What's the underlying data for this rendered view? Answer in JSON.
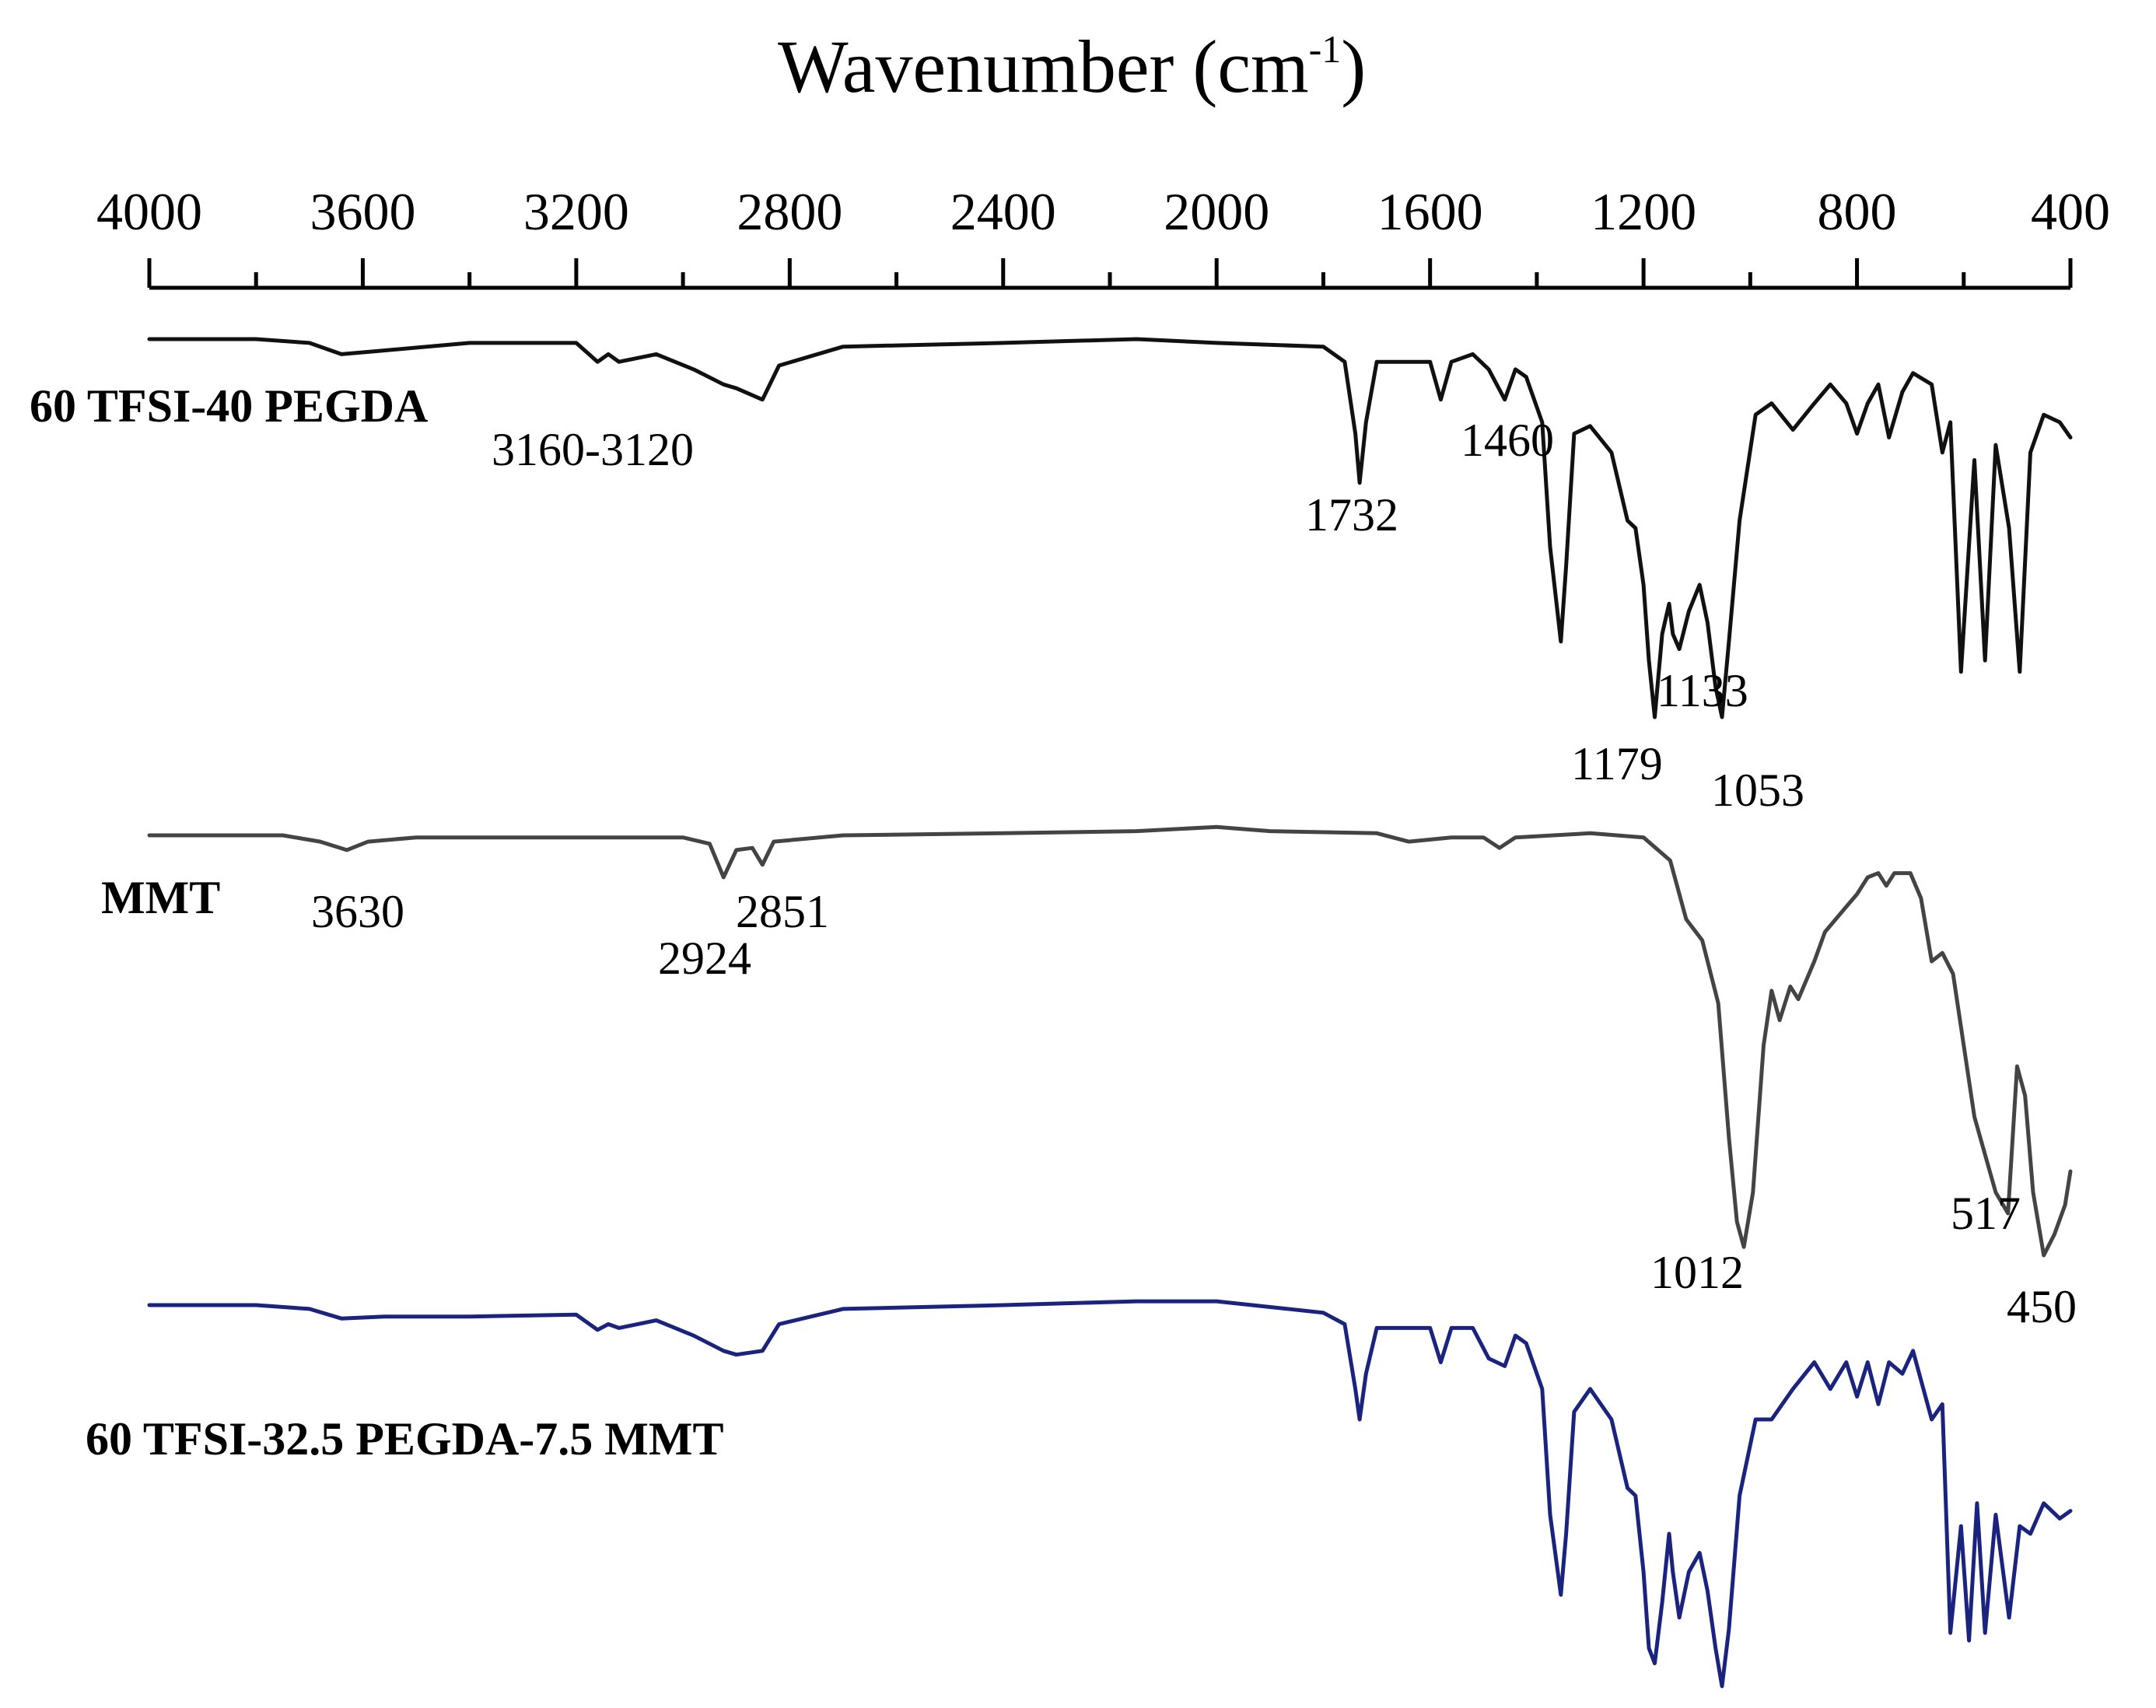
{
  "chart_data": {
    "type": "line",
    "xlabel": "Wavenumber (cm",
    "xlabel_sup": "-1",
    "xlabel_tail": ")",
    "xlim": [
      4000,
      400
    ],
    "x_reversed": true,
    "axis_position": "top",
    "xticks": [
      "4000",
      "3600",
      "3200",
      "2800",
      "2400",
      "2000",
      "1600",
      "1200",
      "800",
      "400"
    ],
    "xtick_values": [
      4000,
      3600,
      3200,
      2800,
      2400,
      2000,
      1600,
      1200,
      800,
      400
    ],
    "grid": false,
    "series": [
      {
        "name": "60 TFSI-40 PEGDA",
        "color": "#111111",
        "baseline": 0.0,
        "points": [
          [
            4000,
            0.0
          ],
          [
            3800,
            0.0
          ],
          [
            3700,
            0.01
          ],
          [
            3640,
            0.04
          ],
          [
            3560,
            0.03
          ],
          [
            3400,
            0.01
          ],
          [
            3200,
            0.01
          ],
          [
            3160,
            0.06
          ],
          [
            3140,
            0.04
          ],
          [
            3120,
            0.06
          ],
          [
            3050,
            0.04
          ],
          [
            2980,
            0.08
          ],
          [
            2924,
            0.12
          ],
          [
            2900,
            0.13
          ],
          [
            2851,
            0.16
          ],
          [
            2820,
            0.07
          ],
          [
            2700,
            0.02
          ],
          [
            2400,
            0.01
          ],
          [
            2150,
            0.0
          ],
          [
            2000,
            0.01
          ],
          [
            1800,
            0.02
          ],
          [
            1760,
            0.06
          ],
          [
            1740,
            0.25
          ],
          [
            1732,
            0.38
          ],
          [
            1720,
            0.22
          ],
          [
            1700,
            0.06
          ],
          [
            1640,
            0.06
          ],
          [
            1600,
            0.06
          ],
          [
            1580,
            0.16
          ],
          [
            1560,
            0.06
          ],
          [
            1520,
            0.04
          ],
          [
            1490,
            0.08
          ],
          [
            1460,
            0.16
          ],
          [
            1440,
            0.08
          ],
          [
            1420,
            0.1
          ],
          [
            1390,
            0.22
          ],
          [
            1375,
            0.55
          ],
          [
            1355,
            0.8
          ],
          [
            1345,
            0.6
          ],
          [
            1330,
            0.25
          ],
          [
            1300,
            0.23
          ],
          [
            1260,
            0.3
          ],
          [
            1230,
            0.48
          ],
          [
            1215,
            0.5
          ],
          [
            1200,
            0.65
          ],
          [
            1190,
            0.85
          ],
          [
            1179,
            1.0
          ],
          [
            1165,
            0.78
          ],
          [
            1152,
            0.7
          ],
          [
            1145,
            0.78
          ],
          [
            1133,
            0.82
          ],
          [
            1115,
            0.72
          ],
          [
            1095,
            0.65
          ],
          [
            1080,
            0.75
          ],
          [
            1065,
            0.92
          ],
          [
            1053,
            1.0
          ],
          [
            1040,
            0.8
          ],
          [
            1020,
            0.48
          ],
          [
            990,
            0.2
          ],
          [
            960,
            0.17
          ],
          [
            920,
            0.24
          ],
          [
            880,
            0.17
          ],
          [
            850,
            0.12
          ],
          [
            820,
            0.17
          ],
          [
            800,
            0.25
          ],
          [
            780,
            0.17
          ],
          [
            760,
            0.12
          ],
          [
            740,
            0.26
          ],
          [
            715,
            0.14
          ],
          [
            695,
            0.09
          ],
          [
            660,
            0.12
          ],
          [
            640,
            0.3
          ],
          [
            625,
            0.22
          ],
          [
            605,
            0.88
          ],
          [
            580,
            0.32
          ],
          [
            560,
            0.85
          ],
          [
            540,
            0.28
          ],
          [
            515,
            0.5
          ],
          [
            495,
            0.88
          ],
          [
            475,
            0.3
          ],
          [
            450,
            0.2
          ],
          [
            420,
            0.22
          ],
          [
            400,
            0.26
          ]
        ]
      },
      {
        "name": "MMT",
        "color": "#444444",
        "baseline": 0.0,
        "points": [
          [
            4000,
            0.0
          ],
          [
            3750,
            0.0
          ],
          [
            3680,
            0.015
          ],
          [
            3630,
            0.035
          ],
          [
            3590,
            0.015
          ],
          [
            3500,
            0.005
          ],
          [
            3200,
            0.005
          ],
          [
            3000,
            0.005
          ],
          [
            2950,
            0.02
          ],
          [
            2924,
            0.1
          ],
          [
            2900,
            0.035
          ],
          [
            2870,
            0.03
          ],
          [
            2851,
            0.07
          ],
          [
            2830,
            0.015
          ],
          [
            2700,
            0.0
          ],
          [
            2400,
            -0.005
          ],
          [
            2150,
            -0.01
          ],
          [
            2000,
            -0.02
          ],
          [
            1900,
            -0.01
          ],
          [
            1700,
            -0.005
          ],
          [
            1640,
            0.015
          ],
          [
            1560,
            0.005
          ],
          [
            1500,
            0.005
          ],
          [
            1470,
            0.03
          ],
          [
            1440,
            0.005
          ],
          [
            1300,
            -0.005
          ],
          [
            1200,
            0.005
          ],
          [
            1150,
            0.06
          ],
          [
            1120,
            0.2
          ],
          [
            1090,
            0.25
          ],
          [
            1060,
            0.4
          ],
          [
            1040,
            0.72
          ],
          [
            1025,
            0.92
          ],
          [
            1012,
            0.98
          ],
          [
            995,
            0.85
          ],
          [
            975,
            0.5
          ],
          [
            960,
            0.37
          ],
          [
            945,
            0.44
          ],
          [
            925,
            0.36
          ],
          [
            910,
            0.39
          ],
          [
            880,
            0.3
          ],
          [
            860,
            0.23
          ],
          [
            840,
            0.2
          ],
          [
            820,
            0.17
          ],
          [
            800,
            0.14
          ],
          [
            780,
            0.1
          ],
          [
            760,
            0.09
          ],
          [
            745,
            0.12
          ],
          [
            730,
            0.09
          ],
          [
            700,
            0.09
          ],
          [
            680,
            0.15
          ],
          [
            660,
            0.3
          ],
          [
            640,
            0.28
          ],
          [
            620,
            0.33
          ],
          [
            600,
            0.5
          ],
          [
            580,
            0.67
          ],
          [
            560,
            0.76
          ],
          [
            540,
            0.85
          ],
          [
            517,
            0.9
          ],
          [
            500,
            0.55
          ],
          [
            485,
            0.62
          ],
          [
            470,
            0.85
          ],
          [
            450,
            1.0
          ],
          [
            430,
            0.95
          ],
          [
            410,
            0.88
          ],
          [
            400,
            0.8
          ]
        ]
      },
      {
        "name": "60 TFSI-32.5 PEGDA-7.5 MMT",
        "color": "#1a237e",
        "baseline": 0.0,
        "points": [
          [
            4000,
            0.0
          ],
          [
            3800,
            0.0
          ],
          [
            3700,
            0.01
          ],
          [
            3640,
            0.035
          ],
          [
            3560,
            0.03
          ],
          [
            3400,
            0.03
          ],
          [
            3200,
            0.025
          ],
          [
            3160,
            0.065
          ],
          [
            3140,
            0.05
          ],
          [
            3120,
            0.06
          ],
          [
            3050,
            0.04
          ],
          [
            2980,
            0.08
          ],
          [
            2924,
            0.12
          ],
          [
            2900,
            0.13
          ],
          [
            2851,
            0.12
          ],
          [
            2820,
            0.05
          ],
          [
            2700,
            0.01
          ],
          [
            2400,
            0.0
          ],
          [
            2150,
            -0.01
          ],
          [
            2000,
            -0.01
          ],
          [
            1800,
            0.02
          ],
          [
            1760,
            0.05
          ],
          [
            1740,
            0.22
          ],
          [
            1732,
            0.3
          ],
          [
            1720,
            0.18
          ],
          [
            1700,
            0.06
          ],
          [
            1640,
            0.06
          ],
          [
            1600,
            0.06
          ],
          [
            1580,
            0.15
          ],
          [
            1560,
            0.06
          ],
          [
            1520,
            0.06
          ],
          [
            1490,
            0.14
          ],
          [
            1460,
            0.16
          ],
          [
            1440,
            0.08
          ],
          [
            1420,
            0.1
          ],
          [
            1390,
            0.22
          ],
          [
            1375,
            0.55
          ],
          [
            1355,
            0.76
          ],
          [
            1345,
            0.6
          ],
          [
            1330,
            0.28
          ],
          [
            1300,
            0.22
          ],
          [
            1260,
            0.3
          ],
          [
            1230,
            0.48
          ],
          [
            1215,
            0.5
          ],
          [
            1200,
            0.7
          ],
          [
            1190,
            0.9
          ],
          [
            1179,
            0.94
          ],
          [
            1165,
            0.78
          ],
          [
            1152,
            0.6
          ],
          [
            1145,
            0.7
          ],
          [
            1133,
            0.82
          ],
          [
            1115,
            0.7
          ],
          [
            1095,
            0.65
          ],
          [
            1080,
            0.75
          ],
          [
            1065,
            0.9
          ],
          [
            1053,
            1.0
          ],
          [
            1040,
            0.85
          ],
          [
            1020,
            0.5
          ],
          [
            990,
            0.3
          ],
          [
            960,
            0.3
          ],
          [
            920,
            0.22
          ],
          [
            880,
            0.15
          ],
          [
            850,
            0.22
          ],
          [
            820,
            0.15
          ],
          [
            800,
            0.24
          ],
          [
            780,
            0.15
          ],
          [
            760,
            0.26
          ],
          [
            740,
            0.15
          ],
          [
            715,
            0.18
          ],
          [
            695,
            0.12
          ],
          [
            660,
            0.3
          ],
          [
            640,
            0.26
          ],
          [
            625,
            0.86
          ],
          [
            605,
            0.58
          ],
          [
            590,
            0.88
          ],
          [
            575,
            0.52
          ],
          [
            560,
            0.86
          ],
          [
            540,
            0.55
          ],
          [
            515,
            0.82
          ],
          [
            495,
            0.58
          ],
          [
            475,
            0.6
          ],
          [
            450,
            0.52
          ],
          [
            420,
            0.56
          ],
          [
            400,
            0.54
          ]
        ]
      }
    ],
    "series_labels": [
      "60 TFSI-40 PEGDA",
      "MMT",
      "60 TFSI-32.5 PEGDA-7.5 MMT"
    ],
    "annotations": [
      {
        "series": 0,
        "text": "3160-3120",
        "x": 3160
      },
      {
        "series": 0,
        "text": "1460",
        "x": 1460
      },
      {
        "series": 0,
        "text": "1732",
        "x": 1732
      },
      {
        "series": 0,
        "text": "1133",
        "x": 1133
      },
      {
        "series": 0,
        "text": "1179",
        "x": 1179
      },
      {
        "series": 0,
        "text": "1053",
        "x": 1053
      },
      {
        "series": 1,
        "text": "3630",
        "x": 3630
      },
      {
        "series": 1,
        "text": "2851",
        "x": 2851
      },
      {
        "series": 1,
        "text": "2924",
        "x": 2924
      },
      {
        "series": 1,
        "text": "1012",
        "x": 1012
      },
      {
        "series": 1,
        "text": "517",
        "x": 517
      },
      {
        "series": 1,
        "text": "450",
        "x": 450
      }
    ]
  }
}
